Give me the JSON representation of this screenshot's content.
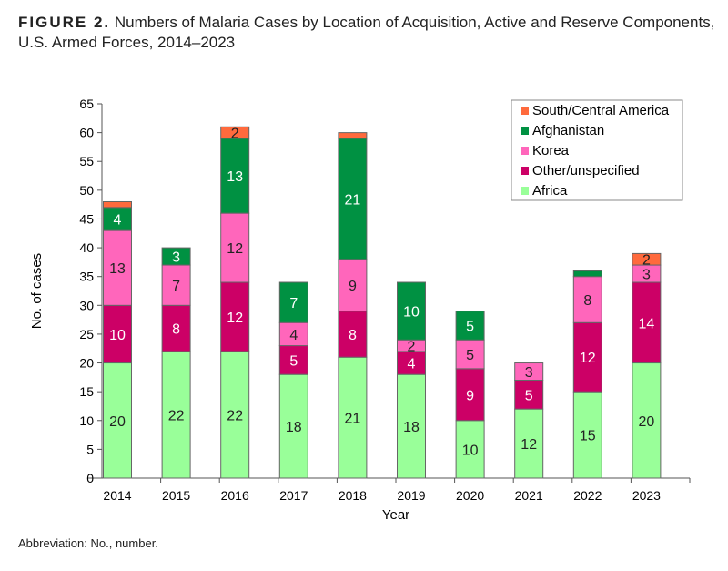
{
  "title": {
    "figure_label": "FIGURE 2.",
    "text": "Numbers of Malaria Cases by Location of Acquisition, Active and Reserve Components, U.S. Armed Forces, 2014–2023"
  },
  "note": "Abbreviation: No., number.",
  "chart_data": {
    "type": "bar",
    "stacked": true,
    "xlabel": "Year",
    "ylabel": "No. of cases",
    "ylim": [
      0,
      65
    ],
    "yticks": [
      0,
      5,
      10,
      15,
      20,
      25,
      30,
      35,
      40,
      45,
      50,
      55,
      60,
      65
    ],
    "grid": false,
    "legend_position": "top-right",
    "categories": [
      "2014",
      "2015",
      "2016",
      "2017",
      "2018",
      "2019",
      "2020",
      "2021",
      "2022",
      "2023"
    ],
    "series": [
      {
        "name": "Africa",
        "color": "#99ff99",
        "label_color": "#222222",
        "values": [
          20,
          22,
          22,
          18,
          21,
          18,
          10,
          12,
          15,
          20
        ]
      },
      {
        "name": "Other/unspecified",
        "color": "#cc0066",
        "label_color": "#ffffff",
        "values": [
          10,
          8,
          12,
          5,
          8,
          4,
          9,
          5,
          12,
          14
        ]
      },
      {
        "name": "Korea",
        "color": "#ff66bb",
        "label_color": "#222222",
        "values": [
          13,
          7,
          12,
          4,
          9,
          2,
          5,
          3,
          8,
          3
        ]
      },
      {
        "name": "Afghanistan",
        "color": "#009142",
        "label_color": "#ffffff",
        "values": [
          4,
          3,
          13,
          7,
          21,
          10,
          5,
          0,
          1,
          0
        ]
      },
      {
        "name": "South/Central America",
        "color": "#ff6a3d",
        "label_color": "#222222",
        "values": [
          1,
          0,
          2,
          0,
          1,
          0,
          0,
          0,
          0,
          2
        ]
      }
    ]
  }
}
